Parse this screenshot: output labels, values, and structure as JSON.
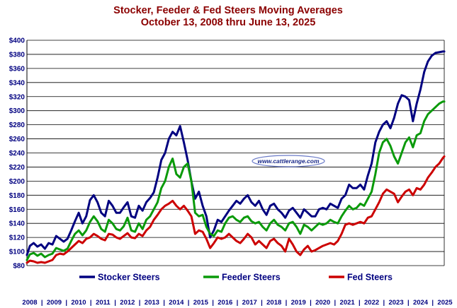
{
  "chart_data": {
    "type": "line",
    "title": "Stocker, Feeder & Fed Steers Moving Averages",
    "subtitle": "October 13, 2008 thru June 13, 2025",
    "watermark": "www.cattlerange.com",
    "ylim": [
      80,
      400
    ],
    "yticks": [
      80,
      100,
      120,
      140,
      160,
      180,
      200,
      220,
      240,
      260,
      280,
      300,
      320,
      340,
      360,
      380,
      400
    ],
    "ytick_labels": [
      "$80",
      "$100",
      "$120",
      "$140",
      "$160",
      "$180",
      "$200",
      "$220",
      "$240",
      "$260",
      "$280",
      "$300",
      "$320",
      "$340",
      "$360",
      "$380",
      "$400"
    ],
    "xlim": [
      2008.78,
      2025.45
    ],
    "year_labels": [
      "2008",
      "2009",
      "2010",
      "2011",
      "2012",
      "2013",
      "2014",
      "2015",
      "2016",
      "2017",
      "2018",
      "2019",
      "2020",
      "2021",
      "2022",
      "2023",
      "2024",
      "2025"
    ],
    "separator": "|",
    "grid": true,
    "legend_position": "bottom",
    "series": [
      {
        "name": "Stocker Steers",
        "color": "#000080",
        "x": [
          2008.78,
          2008.9,
          2009.05,
          2009.2,
          2009.35,
          2009.5,
          2009.65,
          2009.8,
          2009.95,
          2010.1,
          2010.25,
          2010.4,
          2010.55,
          2010.7,
          2010.85,
          2011.0,
          2011.15,
          2011.3,
          2011.45,
          2011.6,
          2011.75,
          2011.9,
          2012.05,
          2012.2,
          2012.35,
          2012.5,
          2012.65,
          2012.8,
          2012.95,
          2013.1,
          2013.25,
          2013.4,
          2013.55,
          2013.7,
          2013.85,
          2014.0,
          2014.15,
          2014.3,
          2014.45,
          2014.6,
          2014.75,
          2014.9,
          2015.05,
          2015.2,
          2015.35,
          2015.5,
          2015.65,
          2015.8,
          2015.95,
          2016.1,
          2016.25,
          2016.4,
          2016.55,
          2016.7,
          2016.85,
          2017.0,
          2017.15,
          2017.3,
          2017.45,
          2017.6,
          2017.75,
          2017.9,
          2018.05,
          2018.2,
          2018.35,
          2018.5,
          2018.65,
          2018.8,
          2018.95,
          2019.1,
          2019.25,
          2019.4,
          2019.55,
          2019.7,
          2019.85,
          2020.0,
          2020.15,
          2020.3,
          2020.45,
          2020.6,
          2020.75,
          2020.9,
          2021.05,
          2021.2,
          2021.35,
          2021.5,
          2021.65,
          2021.8,
          2021.95,
          2022.1,
          2022.25,
          2022.4,
          2022.55,
          2022.7,
          2022.85,
          2023.0,
          2023.15,
          2023.3,
          2023.45,
          2023.6,
          2023.75,
          2023.9,
          2024.05,
          2024.2,
          2024.35,
          2024.5,
          2024.65,
          2024.8,
          2024.95,
          2025.1,
          2025.25,
          2025.4,
          2025.45
        ],
        "values": [
          95,
          108,
          112,
          107,
          110,
          104,
          112,
          110,
          122,
          118,
          114,
          118,
          130,
          143,
          155,
          140,
          150,
          173,
          180,
          170,
          155,
          150,
          172,
          165,
          155,
          155,
          163,
          170,
          150,
          148,
          165,
          158,
          170,
          176,
          184,
          205,
          230,
          240,
          260,
          270,
          265,
          278,
          255,
          230,
          200,
          175,
          185,
          165,
          150,
          120,
          130,
          145,
          142,
          150,
          158,
          165,
          172,
          168,
          175,
          180,
          170,
          165,
          172,
          160,
          152,
          165,
          168,
          160,
          155,
          148,
          158,
          162,
          155,
          148,
          160,
          155,
          150,
          150,
          160,
          162,
          160,
          168,
          165,
          162,
          175,
          180,
          195,
          190,
          190,
          195,
          188,
          208,
          225,
          255,
          270,
          280,
          285,
          275,
          290,
          310,
          322,
          320,
          315,
          285,
          310,
          330,
          355,
          370,
          378,
          382,
          383,
          384,
          384
        ]
      },
      {
        "name": "Feeder Steers",
        "color": "#0a9a0a",
        "x": [
          2008.78,
          2008.9,
          2009.05,
          2009.2,
          2009.35,
          2009.5,
          2009.65,
          2009.8,
          2009.95,
          2010.1,
          2010.25,
          2010.4,
          2010.55,
          2010.7,
          2010.85,
          2011.0,
          2011.15,
          2011.3,
          2011.45,
          2011.6,
          2011.75,
          2011.9,
          2012.05,
          2012.2,
          2012.35,
          2012.5,
          2012.65,
          2012.8,
          2012.95,
          2013.1,
          2013.25,
          2013.4,
          2013.55,
          2013.7,
          2013.85,
          2014.0,
          2014.15,
          2014.3,
          2014.45,
          2014.6,
          2014.75,
          2014.9,
          2015.05,
          2015.2,
          2015.35,
          2015.5,
          2015.65,
          2015.8,
          2015.95,
          2016.1,
          2016.25,
          2016.4,
          2016.55,
          2016.7,
          2016.85,
          2017.0,
          2017.15,
          2017.3,
          2017.45,
          2017.6,
          2017.75,
          2017.9,
          2018.05,
          2018.2,
          2018.35,
          2018.5,
          2018.65,
          2018.8,
          2018.95,
          2019.1,
          2019.25,
          2019.4,
          2019.55,
          2019.7,
          2019.85,
          2020.0,
          2020.15,
          2020.3,
          2020.45,
          2020.6,
          2020.75,
          2020.9,
          2021.05,
          2021.2,
          2021.35,
          2021.5,
          2021.65,
          2021.8,
          2021.95,
          2022.1,
          2022.25,
          2022.4,
          2022.55,
          2022.7,
          2022.85,
          2023.0,
          2023.15,
          2023.3,
          2023.45,
          2023.6,
          2023.75,
          2023.9,
          2024.05,
          2024.2,
          2024.35,
          2024.5,
          2024.65,
          2024.8,
          2024.95,
          2025.1,
          2025.25,
          2025.4,
          2025.45
        ],
        "values": [
          88,
          96,
          98,
          94,
          97,
          92,
          95,
          97,
          105,
          103,
          101,
          104,
          115,
          125,
          130,
          123,
          130,
          142,
          150,
          143,
          132,
          128,
          145,
          140,
          132,
          130,
          136,
          148,
          130,
          128,
          140,
          132,
          145,
          150,
          160,
          170,
          190,
          200,
          220,
          232,
          210,
          205,
          220,
          225,
          200,
          155,
          150,
          152,
          135,
          125,
          122,
          130,
          128,
          140,
          148,
          150,
          145,
          142,
          148,
          150,
          143,
          140,
          142,
          135,
          130,
          140,
          145,
          138,
          135,
          130,
          140,
          142,
          135,
          125,
          138,
          135,
          130,
          135,
          140,
          138,
          140,
          145,
          142,
          140,
          150,
          158,
          165,
          160,
          162,
          168,
          165,
          175,
          185,
          210,
          240,
          255,
          260,
          250,
          235,
          225,
          240,
          255,
          262,
          248,
          265,
          268,
          285,
          295,
          300,
          305,
          310,
          313,
          313
        ]
      },
      {
        "name": "Fed Steers",
        "color": "#cc0000",
        "x": [
          2008.78,
          2008.9,
          2009.05,
          2009.2,
          2009.35,
          2009.5,
          2009.65,
          2009.8,
          2009.95,
          2010.1,
          2010.25,
          2010.4,
          2010.55,
          2010.7,
          2010.85,
          2011.0,
          2011.15,
          2011.3,
          2011.45,
          2011.6,
          2011.75,
          2011.9,
          2012.05,
          2012.2,
          2012.35,
          2012.5,
          2012.65,
          2012.8,
          2012.95,
          2013.1,
          2013.25,
          2013.4,
          2013.55,
          2013.7,
          2013.85,
          2014.0,
          2014.15,
          2014.3,
          2014.45,
          2014.6,
          2014.75,
          2014.9,
          2015.05,
          2015.2,
          2015.35,
          2015.5,
          2015.65,
          2015.8,
          2015.95,
          2016.1,
          2016.25,
          2016.4,
          2016.55,
          2016.7,
          2016.85,
          2017.0,
          2017.15,
          2017.3,
          2017.45,
          2017.6,
          2017.75,
          2017.9,
          2018.05,
          2018.2,
          2018.35,
          2018.5,
          2018.65,
          2018.8,
          2018.95,
          2019.1,
          2019.25,
          2019.4,
          2019.55,
          2019.7,
          2019.85,
          2020.0,
          2020.15,
          2020.3,
          2020.45,
          2020.6,
          2020.75,
          2020.9,
          2021.05,
          2021.2,
          2021.35,
          2021.5,
          2021.65,
          2021.8,
          2021.95,
          2022.1,
          2022.25,
          2022.4,
          2022.55,
          2022.7,
          2022.85,
          2023.0,
          2023.15,
          2023.3,
          2023.45,
          2023.6,
          2023.75,
          2023.9,
          2024.05,
          2024.2,
          2024.35,
          2024.5,
          2024.65,
          2024.8,
          2024.95,
          2025.1,
          2025.25,
          2025.4,
          2025.45
        ],
        "values": [
          84,
          87,
          86,
          84,
          85,
          84,
          86,
          88,
          95,
          97,
          96,
          100,
          105,
          110,
          115,
          112,
          118,
          120,
          125,
          122,
          118,
          116,
          125,
          124,
          120,
          118,
          122,
          126,
          120,
          119,
          125,
          122,
          130,
          135,
          145,
          152,
          160,
          165,
          168,
          172,
          165,
          160,
          165,
          158,
          150,
          125,
          130,
          128,
          118,
          105,
          112,
          120,
          118,
          120,
          125,
          120,
          115,
          112,
          118,
          125,
          120,
          110,
          115,
          110,
          105,
          115,
          118,
          112,
          108,
          100,
          118,
          110,
          100,
          95,
          103,
          108,
          100,
          102,
          105,
          108,
          110,
          112,
          110,
          115,
          125,
          138,
          140,
          138,
          140,
          142,
          140,
          148,
          150,
          160,
          170,
          182,
          188,
          185,
          182,
          170,
          178,
          185,
          188,
          180,
          190,
          188,
          195,
          205,
          212,
          220,
          225,
          233,
          235
        ]
      }
    ]
  }
}
